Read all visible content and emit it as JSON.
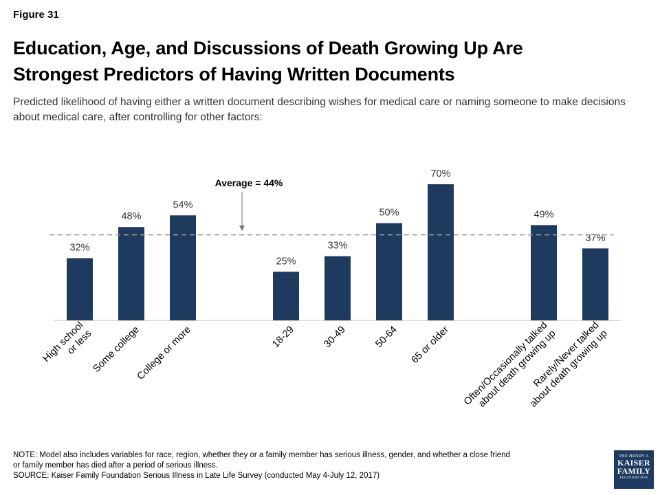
{
  "figure_label": "Figure 31",
  "title_line1": "Education, Age, and Discussions of Death Growing Up Are",
  "title_line2": "Strongest Predictors of Having Written Documents",
  "subtitle": "Predicted likelihood of having either a written document describing wishes for medical care or naming someone to make decisions about medical care, after controlling for other factors:",
  "note_line1": "NOTE: Model also includes variables for race, region, whether they or a family member has serious illness, gender, and whether a close friend",
  "note_line2": "or family member has died after a period of serious illness.",
  "source": "SOURCE: Kaiser Family Foundation Serious Illness in Late Life Survey (conducted May 4-July 12, 2017)",
  "logo": {
    "line1": "THE HENRY J.",
    "line2": "KAISER",
    "line3": "FAMILY",
    "line4": "FOUNDATION"
  },
  "colors": {
    "bar": "#1e3a5f",
    "average_line": "#999999",
    "axis": "#bfbfbf"
  },
  "chart_data": {
    "type": "bar",
    "categories": [
      [
        "High school",
        "or less"
      ],
      [
        "Some college"
      ],
      [
        "College or more"
      ],
      [
        "18-29"
      ],
      [
        "30-49"
      ],
      [
        "50-64"
      ],
      [
        "65 or older"
      ],
      [
        "Often/Occasionally talked",
        "about death growing up"
      ],
      [
        "Rarely/Never talked",
        "about death growing up"
      ]
    ],
    "groups": [
      [
        0,
        1,
        2
      ],
      [
        3,
        4,
        5,
        6
      ],
      [
        7,
        8
      ]
    ],
    "values": [
      32,
      48,
      54,
      25,
      33,
      50,
      70,
      49,
      37
    ],
    "data_labels": [
      "32%",
      "48%",
      "54%",
      "25%",
      "33%",
      "50%",
      "70%",
      "49%",
      "37%"
    ],
    "average": {
      "value": 44,
      "label": "Average = 44%"
    },
    "ylim": [
      0,
      75
    ],
    "grid": false
  }
}
